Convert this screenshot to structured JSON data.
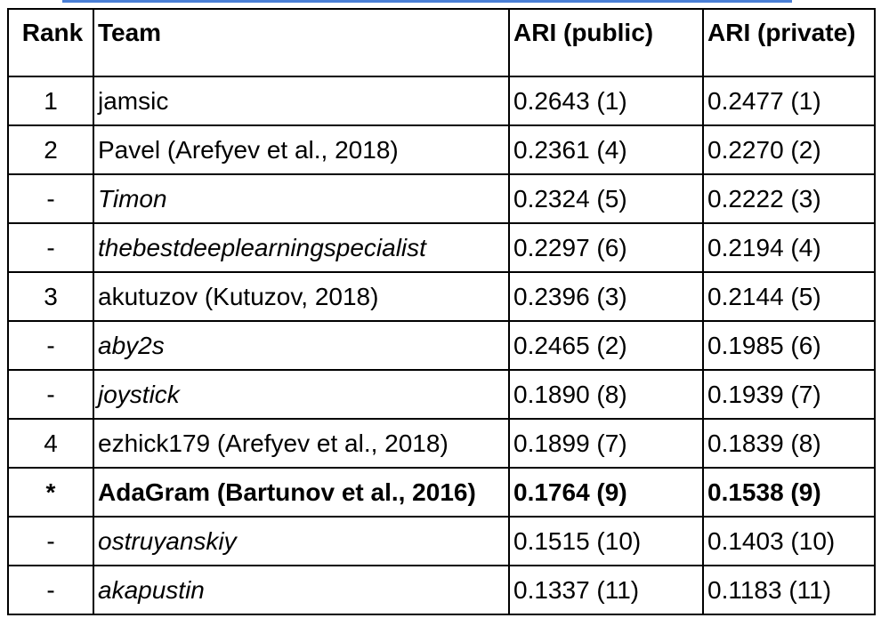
{
  "table": {
    "headers": {
      "rank": "Rank",
      "team": "Team",
      "ari_public": "ARI (public)",
      "ari_private": "ARI (private)"
    },
    "rows": [
      {
        "rank": "1",
        "team": "jamsic",
        "ari_public": "0.2643 (1)",
        "ari_private": "0.2477 (1)",
        "style": "normal"
      },
      {
        "rank": "2",
        "team": "Pavel (Arefyev et al., 2018)",
        "ari_public": "0.2361 (4)",
        "ari_private": "0.2270 (2)",
        "style": "normal"
      },
      {
        "rank": "-",
        "team": "Timon",
        "ari_public": "0.2324 (5)",
        "ari_private": "0.2222 (3)",
        "style": "italic"
      },
      {
        "rank": "-",
        "team": "thebestdeeplearningspecialist",
        "ari_public": "0.2297 (6)",
        "ari_private": "0.2194 (4)",
        "style": "italic"
      },
      {
        "rank": "3",
        "team": "akutuzov (Kutuzov, 2018)",
        "ari_public": "0.2396 (3)",
        "ari_private": "0.2144 (5)",
        "style": "normal"
      },
      {
        "rank": "-",
        "team": "aby2s",
        "ari_public": "0.2465 (2)",
        "ari_private": "0.1985 (6)",
        "style": "italic"
      },
      {
        "rank": "-",
        "team": "joystick",
        "ari_public": "0.1890 (8)",
        "ari_private": "0.1939 (7)",
        "style": "italic"
      },
      {
        "rank": "4",
        "team": "ezhick179 (Arefyev et al., 2018)",
        "ari_public": "0.1899 (7)",
        "ari_private": "0.1839 (8)",
        "style": "normal"
      },
      {
        "rank": "*",
        "team": "AdaGram (Bartunov et al., 2016)",
        "ari_public": "0.1764 (9)",
        "ari_private": "0.1538 (9)",
        "style": "bold"
      },
      {
        "rank": "-",
        "team": "ostruyanskiy",
        "ari_public": "0.1515 (10)",
        "ari_private": "0.1403 (10)",
        "style": "italic"
      },
      {
        "rank": "-",
        "team": "akapustin",
        "ari_public": "0.1337 (11)",
        "ari_private": "0.1183 (11)",
        "style": "italic"
      }
    ]
  }
}
